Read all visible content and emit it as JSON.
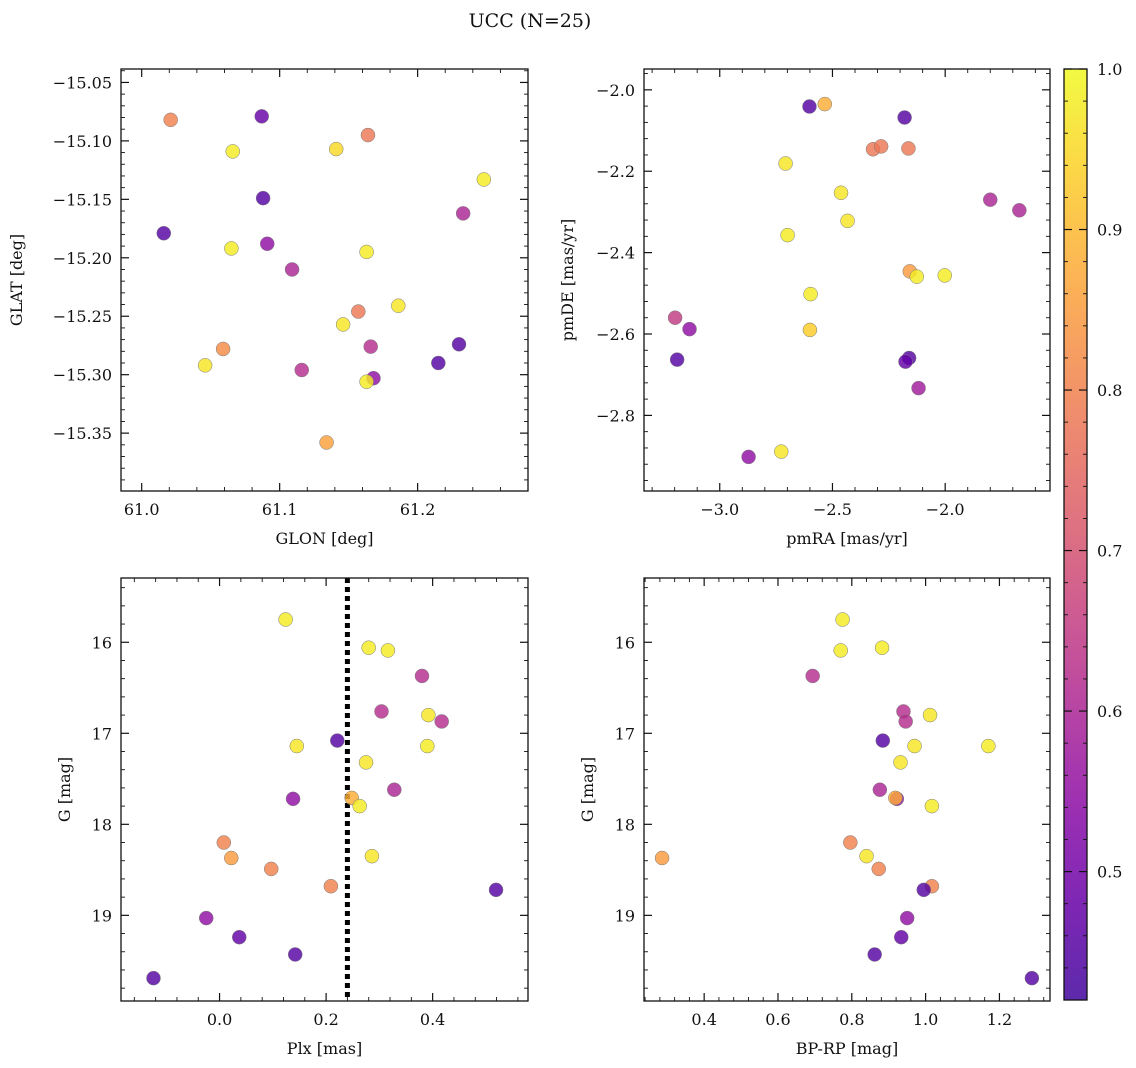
{
  "title": "UCC (N=25)",
  "colorbar": {
    "min": 0.42,
    "max": 1.0,
    "ticks": [
      0.5,
      0.6,
      0.7,
      0.8,
      0.9,
      1.0
    ],
    "tick_labels": [
      "0.5",
      "0.6",
      "0.7",
      "0.8",
      "0.9",
      "1.0"
    ],
    "colormap": "plasma"
  },
  "chart_data": [
    {
      "type": "scatter",
      "xlabel": "GLON [deg]",
      "ylabel": "GLAT [deg]",
      "xlim": [
        60.985,
        61.28
      ],
      "ylim": [
        -15.3995,
        -15.0385
      ],
      "y_inverted": false,
      "xticks": [
        61.0,
        61.1,
        61.2
      ],
      "xtick_labels": [
        "61.0",
        "61.1",
        "61.2"
      ],
      "yticks": [
        -15.35,
        -15.3,
        -15.25,
        -15.2,
        -15.15,
        -15.1,
        -15.05
      ],
      "ytick_labels": [
        "−15.35",
        "−15.30",
        "−15.25",
        "−15.20",
        "−15.15",
        "−15.10",
        "−15.05"
      ],
      "points": [
        {
          "x": 61.021,
          "y": -15.082,
          "p": 0.8
        },
        {
          "x": 61.087,
          "y": -15.079,
          "p": 0.48
        },
        {
          "x": 61.164,
          "y": -15.095,
          "p": 0.78
        },
        {
          "x": 61.066,
          "y": -15.109,
          "p": 0.98
        },
        {
          "x": 61.141,
          "y": -15.107,
          "p": 0.95
        },
        {
          "x": 61.248,
          "y": -15.133,
          "p": 0.98
        },
        {
          "x": 61.088,
          "y": -15.149,
          "p": 0.45
        },
        {
          "x": 61.233,
          "y": -15.162,
          "p": 0.6
        },
        {
          "x": 61.016,
          "y": -15.179,
          "p": 0.45
        },
        {
          "x": 61.065,
          "y": -15.192,
          "p": 0.98
        },
        {
          "x": 61.091,
          "y": -15.188,
          "p": 0.55
        },
        {
          "x": 61.163,
          "y": -15.195,
          "p": 0.98
        },
        {
          "x": 61.109,
          "y": -15.21,
          "p": 0.6
        },
        {
          "x": 61.186,
          "y": -15.241,
          "p": 0.97
        },
        {
          "x": 61.157,
          "y": -15.246,
          "p": 0.78
        },
        {
          "x": 61.146,
          "y": -15.257,
          "p": 0.97
        },
        {
          "x": 61.059,
          "y": -15.278,
          "p": 0.82
        },
        {
          "x": 61.166,
          "y": -15.276,
          "p": 0.62
        },
        {
          "x": 61.23,
          "y": -15.274,
          "p": 0.45
        },
        {
          "x": 61.215,
          "y": -15.29,
          "p": 0.45
        },
        {
          "x": 61.046,
          "y": -15.292,
          "p": 0.97
        },
        {
          "x": 61.116,
          "y": -15.296,
          "p": 0.62
        },
        {
          "x": 61.168,
          "y": -15.303,
          "p": 0.55
        },
        {
          "x": 61.163,
          "y": -15.306,
          "p": 0.98
        },
        {
          "x": 61.134,
          "y": -15.358,
          "p": 0.86
        }
      ]
    },
    {
      "type": "scatter",
      "xlabel": "pmRA [mas/yr]",
      "ylabel": "pmDE [mas/yr]",
      "xlim": [
        -3.336,
        -1.535
      ],
      "ylim": [
        -2.9858,
        -1.9488
      ],
      "y_inverted": false,
      "xticks": [
        -3.0,
        -2.5,
        -2.0
      ],
      "xtick_labels": [
        "−3.0",
        "−2.5",
        "−2.0"
      ],
      "yticks": [
        -2.8,
        -2.6,
        -2.4,
        -2.2,
        -2.0
      ],
      "ytick_labels": [
        "−2.8",
        "−2.6",
        "−2.4",
        "−2.2",
        "−2.0"
      ],
      "points": [
        {
          "x": -2.602,
          "y": -2.041,
          "p": 0.45
        },
        {
          "x": -2.534,
          "y": -2.035,
          "p": 0.88
        },
        {
          "x": -2.18,
          "y": -2.068,
          "p": 0.45
        },
        {
          "x": -2.32,
          "y": -2.146,
          "p": 0.78
        },
        {
          "x": -2.284,
          "y": -2.139,
          "p": 0.78
        },
        {
          "x": -2.163,
          "y": -2.144,
          "p": 0.78
        },
        {
          "x": -2.708,
          "y": -2.181,
          "p": 0.97
        },
        {
          "x": -2.462,
          "y": -2.253,
          "p": 0.97
        },
        {
          "x": -1.8,
          "y": -2.27,
          "p": 0.6
        },
        {
          "x": -1.671,
          "y": -2.296,
          "p": 0.6
        },
        {
          "x": -2.433,
          "y": -2.322,
          "p": 0.97
        },
        {
          "x": -2.699,
          "y": -2.357,
          "p": 0.98
        },
        {
          "x": -2.157,
          "y": -2.446,
          "p": 0.85
        },
        {
          "x": -2.126,
          "y": -2.459,
          "p": 0.98
        },
        {
          "x": -2.002,
          "y": -2.456,
          "p": 0.98
        },
        {
          "x": -2.597,
          "y": -2.502,
          "p": 0.98
        },
        {
          "x": -3.198,
          "y": -2.56,
          "p": 0.65
        },
        {
          "x": -3.134,
          "y": -2.588,
          "p": 0.55
        },
        {
          "x": -2.6,
          "y": -2.59,
          "p": 0.93
        },
        {
          "x": -3.189,
          "y": -2.663,
          "p": 0.45
        },
        {
          "x": -2.16,
          "y": -2.659,
          "p": 0.45
        },
        {
          "x": -2.176,
          "y": -2.668,
          "p": 0.47
        },
        {
          "x": -2.118,
          "y": -2.733,
          "p": 0.58
        },
        {
          "x": -2.727,
          "y": -2.889,
          "p": 0.97
        },
        {
          "x": -2.872,
          "y": -2.902,
          "p": 0.55
        }
      ]
    },
    {
      "type": "scatter",
      "xlabel": "Plx [mas]",
      "ylabel": "G [mag]",
      "xlim": [
        -0.185,
        0.579
      ],
      "ylim": [
        19.941,
        15.294
      ],
      "y_inverted": true,
      "xticks": [
        0.0,
        0.2,
        0.4
      ],
      "xtick_labels": [
        "0.0",
        "0.2",
        "0.4"
      ],
      "yticks": [
        16,
        17,
        18,
        19
      ],
      "ytick_labels": [
        "16",
        "17",
        "18",
        "19"
      ],
      "vline": {
        "x": 0.24,
        "style": "dotted",
        "color": "#000000"
      },
      "points": [
        {
          "x": 0.124,
          "y": 15.75,
          "p": 0.98
        },
        {
          "x": 0.28,
          "y": 16.06,
          "p": 0.98
        },
        {
          "x": 0.316,
          "y": 16.09,
          "p": 0.98
        },
        {
          "x": 0.38,
          "y": 16.37,
          "p": 0.62
        },
        {
          "x": 0.304,
          "y": 16.76,
          "p": 0.62
        },
        {
          "x": 0.392,
          "y": 16.8,
          "p": 0.97
        },
        {
          "x": 0.417,
          "y": 16.87,
          "p": 0.62
        },
        {
          "x": 0.221,
          "y": 17.08,
          "p": 0.45
        },
        {
          "x": 0.145,
          "y": 17.14,
          "p": 0.97
        },
        {
          "x": 0.39,
          "y": 17.14,
          "p": 0.98
        },
        {
          "x": 0.275,
          "y": 17.32,
          "p": 0.97
        },
        {
          "x": 0.328,
          "y": 17.62,
          "p": 0.6
        },
        {
          "x": 0.138,
          "y": 17.72,
          "p": 0.55
        },
        {
          "x": 0.248,
          "y": 17.71,
          "p": 0.88
        },
        {
          "x": 0.263,
          "y": 17.8,
          "p": 0.98
        },
        {
          "x": 0.008,
          "y": 18.2,
          "p": 0.8
        },
        {
          "x": 0.022,
          "y": 18.37,
          "p": 0.85
        },
        {
          "x": 0.286,
          "y": 18.35,
          "p": 0.97
        },
        {
          "x": 0.097,
          "y": 18.49,
          "p": 0.8
        },
        {
          "x": 0.209,
          "y": 18.68,
          "p": 0.8
        },
        {
          "x": 0.519,
          "y": 18.72,
          "p": 0.45
        },
        {
          "x": -0.025,
          "y": 19.03,
          "p": 0.55
        },
        {
          "x": 0.037,
          "y": 19.24,
          "p": 0.47
        },
        {
          "x": 0.142,
          "y": 19.43,
          "p": 0.45
        },
        {
          "x": -0.124,
          "y": 19.69,
          "p": 0.45
        }
      ]
    },
    {
      "type": "scatter",
      "xlabel": "BP-RP [mag]",
      "ylabel": "G [mag]",
      "xlim": [
        0.237,
        1.337
      ],
      "ylim": [
        19.941,
        15.294
      ],
      "y_inverted": true,
      "xticks": [
        0.4,
        0.6,
        0.8,
        1.0,
        1.2
      ],
      "xtick_labels": [
        "0.4",
        "0.6",
        "0.8",
        "1.0",
        "1.2"
      ],
      "yticks": [
        16,
        17,
        18,
        19
      ],
      "ytick_labels": [
        "16",
        "17",
        "18",
        "19"
      ],
      "points": [
        {
          "x": 0.775,
          "y": 15.75,
          "p": 0.98
        },
        {
          "x": 0.77,
          "y": 16.09,
          "p": 0.98
        },
        {
          "x": 0.882,
          "y": 16.06,
          "p": 0.98
        },
        {
          "x": 0.694,
          "y": 16.37,
          "p": 0.62
        },
        {
          "x": 0.94,
          "y": 16.76,
          "p": 0.62
        },
        {
          "x": 1.012,
          "y": 16.8,
          "p": 0.97
        },
        {
          "x": 0.946,
          "y": 16.87,
          "p": 0.62
        },
        {
          "x": 0.884,
          "y": 17.08,
          "p": 0.45
        },
        {
          "x": 0.97,
          "y": 17.14,
          "p": 0.97
        },
        {
          "x": 1.17,
          "y": 17.14,
          "p": 0.98
        },
        {
          "x": 0.932,
          "y": 17.32,
          "p": 0.97
        },
        {
          "x": 0.876,
          "y": 17.62,
          "p": 0.6
        },
        {
          "x": 0.922,
          "y": 17.72,
          "p": 0.55
        },
        {
          "x": 0.918,
          "y": 17.71,
          "p": 0.88
        },
        {
          "x": 1.017,
          "y": 17.8,
          "p": 0.98
        },
        {
          "x": 0.796,
          "y": 18.2,
          "p": 0.8
        },
        {
          "x": 0.286,
          "y": 18.37,
          "p": 0.85
        },
        {
          "x": 0.84,
          "y": 18.35,
          "p": 0.97
        },
        {
          "x": 0.873,
          "y": 18.49,
          "p": 0.8
        },
        {
          "x": 1.017,
          "y": 18.68,
          "p": 0.8
        },
        {
          "x": 0.995,
          "y": 18.72,
          "p": 0.45
        },
        {
          "x": 0.95,
          "y": 19.03,
          "p": 0.55
        },
        {
          "x": 0.934,
          "y": 19.24,
          "p": 0.47
        },
        {
          "x": 0.862,
          "y": 19.43,
          "p": 0.45
        },
        {
          "x": 1.288,
          "y": 19.69,
          "p": 0.45
        }
      ]
    }
  ]
}
